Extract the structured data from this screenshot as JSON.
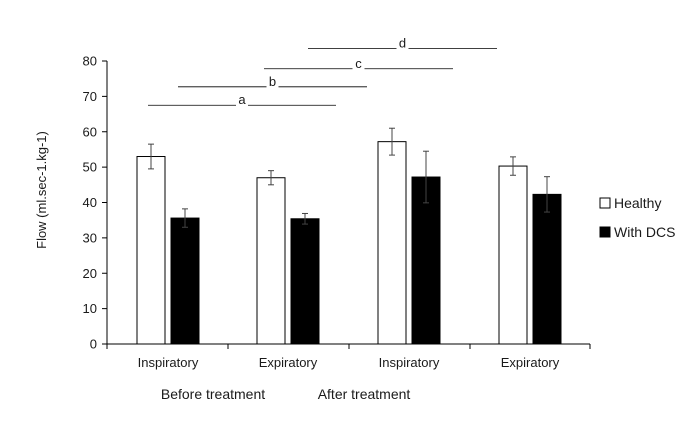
{
  "chart_data": {
    "type": "bar",
    "title": "",
    "xlabel": "",
    "ylabel": "Flow (ml.sec-1.kg-1)",
    "ylim": [
      0,
      80
    ],
    "yticks": [
      0,
      10,
      20,
      30,
      40,
      50,
      60,
      70,
      80
    ],
    "grid": false,
    "legend_position": "right",
    "categories": [
      "Inspiratory",
      "Expiratory",
      "Inspiratory",
      "Expiratory"
    ],
    "group_labels": [
      {
        "label": "Before treatment",
        "categories": [
          0,
          1
        ]
      },
      {
        "label": "After treatment",
        "categories": [
          2,
          3
        ]
      }
    ],
    "series": [
      {
        "name": "Healthy",
        "color": "#ffffff",
        "stroke": "#000000",
        "values": [
          53,
          47,
          57.2,
          50.3
        ],
        "error": [
          3.5,
          2,
          3.8,
          2.6
        ]
      },
      {
        "name": "With DCS",
        "color": "#000000",
        "stroke": "#000000",
        "values": [
          35.6,
          35.4,
          47.2,
          42.3
        ],
        "error": [
          2.6,
          1.5,
          7.3,
          5
        ]
      }
    ],
    "annotations": [
      {
        "label": "a",
        "from": "Inspiratory (Before treatment)",
        "to": "Expiratory (Before treatment)",
        "level": 67.5
      },
      {
        "label": "b",
        "from": "Inspiratory (Before treatment)",
        "to": "Inspiratory (After treatment)",
        "level": 72.7
      },
      {
        "label": "c",
        "from": "Expiratory (Before treatment)",
        "to": "Expiratory (After treatment)",
        "level": 77.8
      },
      {
        "label": "d",
        "from": "Inspiratory (After treatment)",
        "to": "Expiratory (After treatment)",
        "level": 83.5
      }
    ]
  }
}
